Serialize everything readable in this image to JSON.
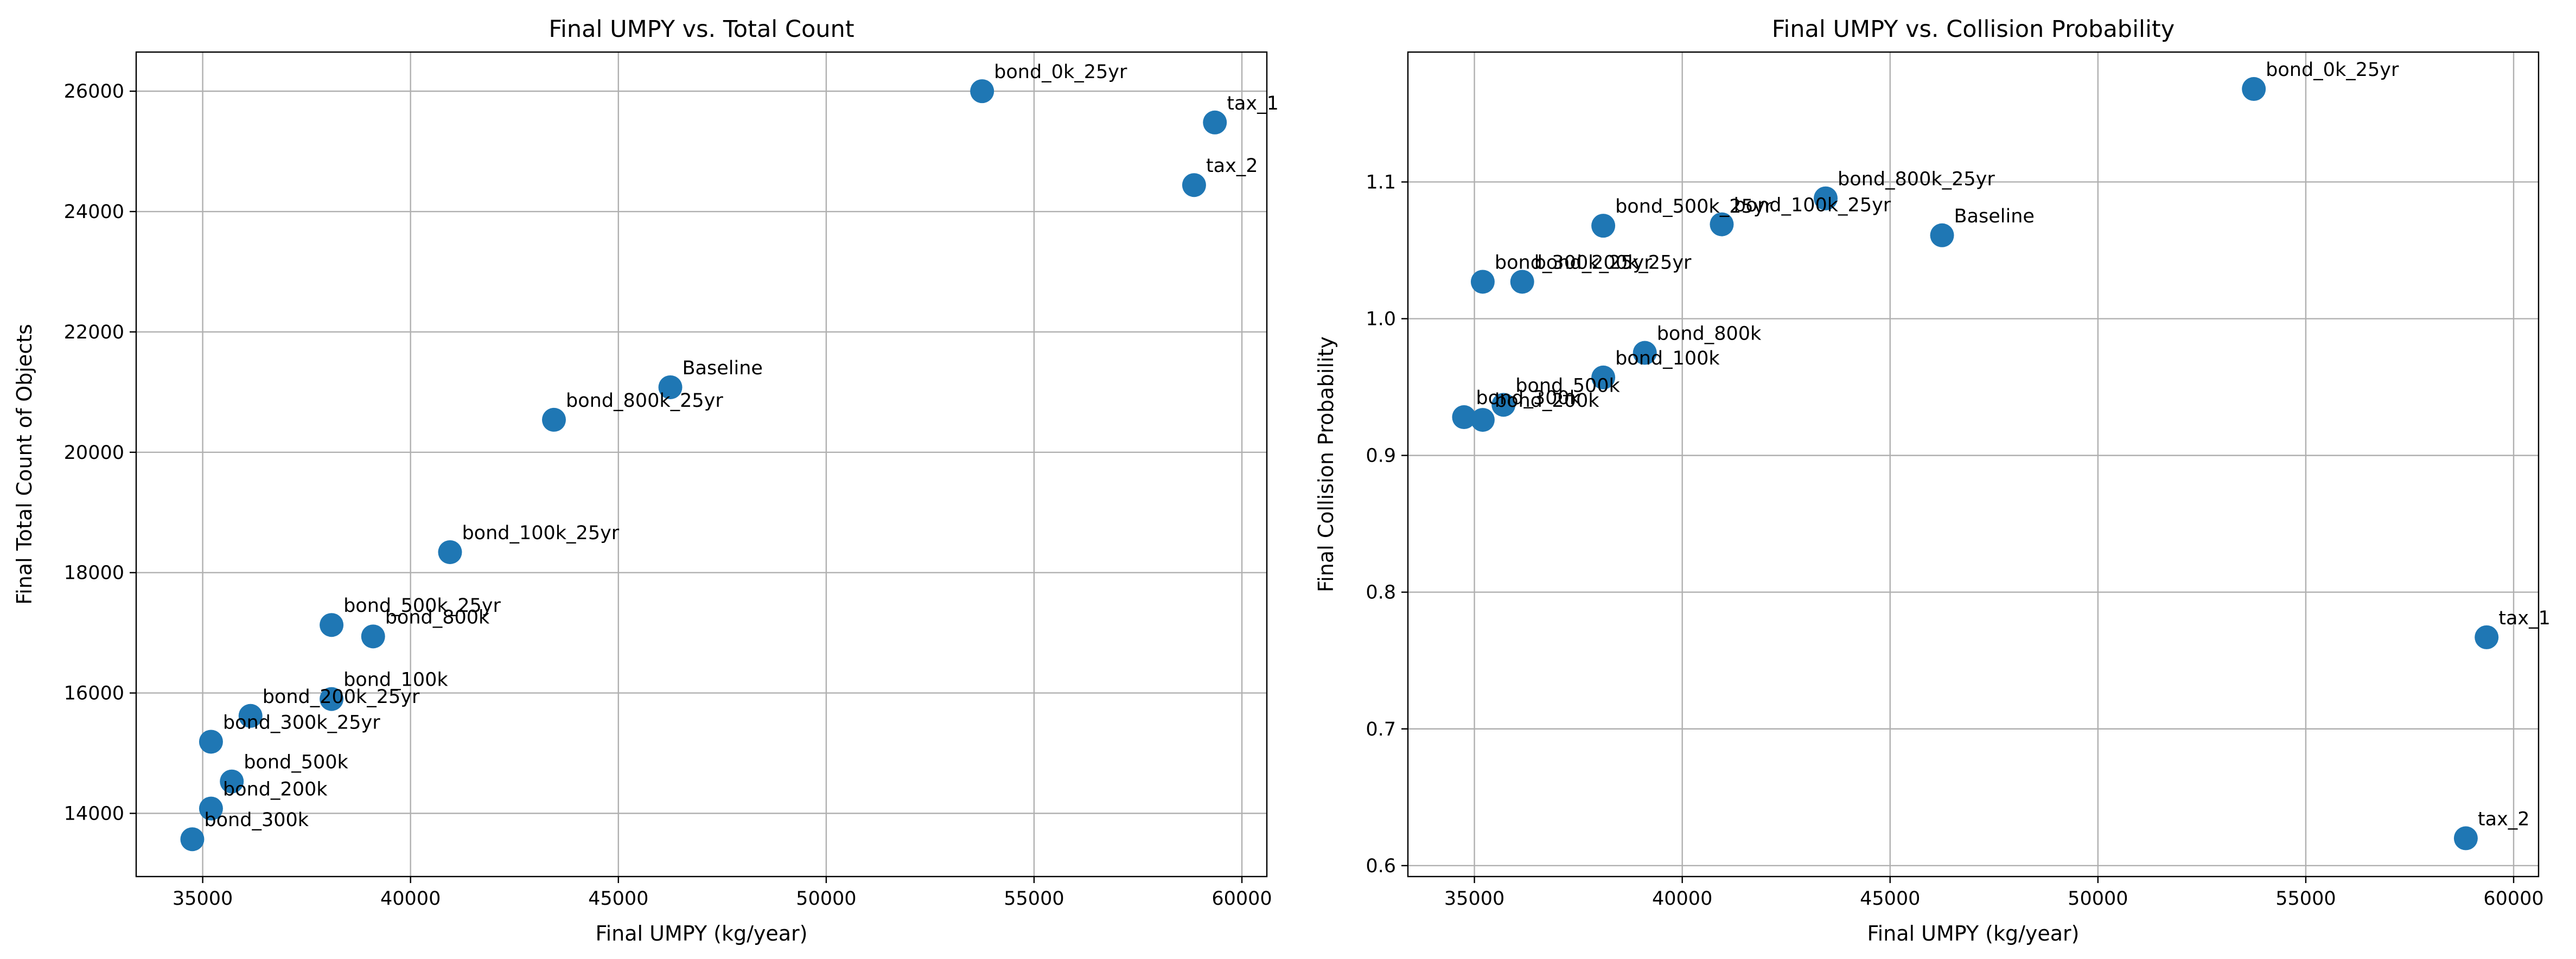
{
  "chart_data": [
    {
      "type": "scatter",
      "title": "Final UMPY vs. Total Count",
      "xlabel": "Final UMPY (kg/year)",
      "ylabel": "Final Total Count of Objects",
      "xlim": [
        33400,
        60600
      ],
      "ylim": [
        12950,
        26650
      ],
      "xticks": [
        35000,
        40000,
        45000,
        50000,
        55000,
        60000
      ],
      "yticks": [
        14000,
        16000,
        18000,
        20000,
        22000,
        24000,
        26000
      ],
      "grid": true,
      "marker_color": "#1f77b4",
      "points": [
        {
          "label": "bond_0k_25yr",
          "x": 53750,
          "y": 26000
        },
        {
          "label": "tax_1",
          "x": 59350,
          "y": 25480
        },
        {
          "label": "tax_2",
          "x": 58850,
          "y": 24440
        },
        {
          "label": "Baseline",
          "x": 46250,
          "y": 21080
        },
        {
          "label": "bond_800k_25yr",
          "x": 43450,
          "y": 20540
        },
        {
          "label": "bond_100k_25yr",
          "x": 40950,
          "y": 18340
        },
        {
          "label": "bond_500k_25yr",
          "x": 38100,
          "y": 17130
        },
        {
          "label": "bond_800k",
          "x": 39100,
          "y": 16940
        },
        {
          "label": "bond_100k",
          "x": 38100,
          "y": 15900
        },
        {
          "label": "bond_200k_25yr",
          "x": 36150,
          "y": 15620
        },
        {
          "label": "bond_300k_25yr",
          "x": 35200,
          "y": 15190
        },
        {
          "label": "bond_500k",
          "x": 35700,
          "y": 14530
        },
        {
          "label": "bond_200k",
          "x": 35200,
          "y": 14080
        },
        {
          "label": "bond_300k",
          "x": 34750,
          "y": 13570
        }
      ]
    },
    {
      "type": "scatter",
      "title": "Final UMPY vs. Collision Probability",
      "xlabel": "Final UMPY (kg/year)",
      "ylabel": "Final Collision Probability",
      "xlim": [
        33400,
        60600
      ],
      "ylim": [
        0.592,
        1.195
      ],
      "xticks": [
        35000,
        40000,
        45000,
        50000,
        55000,
        60000
      ],
      "yticks": [
        0.6,
        0.7,
        0.8,
        0.9,
        1.0,
        1.1
      ],
      "grid": true,
      "marker_color": "#1f77b4",
      "points": [
        {
          "label": "bond_0k_25yr",
          "x": 53750,
          "y": 1.168
        },
        {
          "label": "bond_800k_25yr",
          "x": 43450,
          "y": 1.088
        },
        {
          "label": "bond_100k_25yr",
          "x": 40950,
          "y": 1.069
        },
        {
          "label": "bond_500k_25yr",
          "x": 38100,
          "y": 1.068
        },
        {
          "label": "Baseline",
          "x": 46250,
          "y": 1.061
        },
        {
          "label": "bond_300k_25yr",
          "x": 35200,
          "y": 1.027
        },
        {
          "label": "bond_200k_25yr",
          "x": 36150,
          "y": 1.027
        },
        {
          "label": "bond_800k",
          "x": 39100,
          "y": 0.975
        },
        {
          "label": "bond_100k",
          "x": 38100,
          "y": 0.957
        },
        {
          "label": "bond_500k",
          "x": 35700,
          "y": 0.937
        },
        {
          "label": "bond_300k",
          "x": 34750,
          "y": 0.928
        },
        {
          "label": "bond_200k",
          "x": 35200,
          "y": 0.926
        },
        {
          "label": "tax_1",
          "x": 59350,
          "y": 0.767
        },
        {
          "label": "tax_2",
          "x": 58850,
          "y": 0.62
        }
      ]
    }
  ]
}
